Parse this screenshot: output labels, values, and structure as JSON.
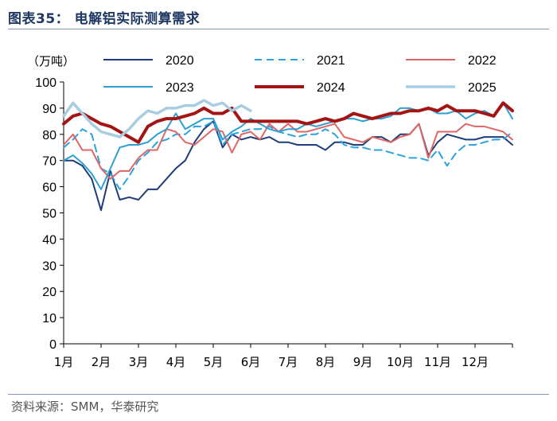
{
  "figure": {
    "title": "图表35：  电解铝实际测算需求",
    "source": "资料来源：SMM，华泰研究"
  },
  "chart_data": {
    "type": "line",
    "title": "电解铝实际测算需求",
    "unit_label": "（万吨）",
    "xlabel": "",
    "ylabel": "万吨",
    "ylim": [
      0,
      100
    ],
    "yticks": [
      0,
      10,
      20,
      30,
      40,
      50,
      60,
      70,
      80,
      90,
      100
    ],
    "xlim": [
      0,
      48
    ],
    "xticks": [
      {
        "label": "1月",
        "x": 0
      },
      {
        "label": "2月",
        "x": 4
      },
      {
        "label": "3月",
        "x": 8
      },
      {
        "label": "4月",
        "x": 12
      },
      {
        "label": "5月",
        "x": 16
      },
      {
        "label": "6月",
        "x": 20
      },
      {
        "label": "7月",
        "x": 24
      },
      {
        "label": "8月",
        "x": 28
      },
      {
        "label": "9月",
        "x": 32
      },
      {
        "label": "10月",
        "x": 36
      },
      {
        "label": "11月",
        "x": 40
      },
      {
        "label": "12月",
        "x": 44
      }
    ],
    "legend_position": "top",
    "series": [
      {
        "name": "2020",
        "color": "#1f3d7a",
        "dash": "solid",
        "width": 2,
        "values": [
          70,
          70,
          68,
          63,
          51,
          66,
          55,
          56,
          55,
          59,
          59,
          63,
          67,
          70,
          77,
          82,
          85,
          75,
          80,
          78,
          79,
          78,
          79,
          77,
          77,
          76,
          76,
          76,
          74,
          77,
          77,
          76,
          76,
          79,
          79,
          77,
          80,
          80,
          84,
          72,
          77,
          80,
          79,
          78,
          78,
          79,
          79,
          79,
          76
        ]
      },
      {
        "name": "2021",
        "color": "#2aa3e0",
        "dash": "dashed",
        "width": 2,
        "values": [
          75,
          78,
          82,
          80,
          67,
          65,
          59,
          64,
          70,
          73,
          77,
          78,
          80,
          80,
          83,
          83,
          85,
          76,
          80,
          81,
          82,
          82,
          83,
          81,
          80,
          79,
          80,
          80,
          82,
          80,
          76,
          75,
          75,
          74,
          74,
          73,
          72,
          71,
          71,
          70,
          74,
          68,
          73,
          76,
          76,
          77,
          78,
          78,
          81
        ]
      },
      {
        "name": "2022",
        "color": "#e06666",
        "dash": "solid",
        "width": 2,
        "values": [
          76,
          80,
          74,
          74,
          67,
          63,
          66,
          66,
          71,
          74,
          74,
          82,
          81,
          77,
          76,
          79,
          82,
          81,
          73,
          80,
          81,
          78,
          84,
          81,
          84,
          81,
          81,
          82,
          83,
          84,
          79,
          78,
          77,
          79,
          78,
          77,
          79,
          80,
          84,
          71,
          81,
          81,
          81,
          84,
          83,
          83,
          82,
          81,
          78
        ]
      },
      {
        "name": "2023",
        "color": "#2e9fd4",
        "dash": "solid",
        "width": 2,
        "values": [
          70,
          72,
          69,
          65,
          59,
          67,
          75,
          76,
          76,
          77,
          80,
          82,
          88,
          82,
          84,
          86,
          86,
          78,
          81,
          83,
          86,
          84,
          82,
          81,
          82,
          82,
          84,
          83,
          84,
          85,
          86,
          86,
          85,
          86,
          86,
          87,
          90,
          90,
          89,
          90,
          88,
          88,
          89,
          86,
          88,
          89,
          87,
          92,
          86
        ]
      },
      {
        "name": "2024",
        "color": "#a31515",
        "dash": "solid",
        "width": 4,
        "values": [
          84,
          87,
          88,
          86,
          84,
          83,
          81,
          79,
          77,
          83,
          85,
          86,
          86,
          87,
          88,
          90,
          88,
          88,
          90,
          85,
          85,
          85,
          85,
          85,
          85,
          85,
          84,
          85,
          86,
          85,
          86,
          88,
          87,
          86,
          87,
          88,
          88,
          89,
          89,
          90,
          89,
          91,
          89,
          89,
          89,
          88,
          87,
          92,
          89
        ]
      },
      {
        "name": "2025",
        "color": "#a9cde0",
        "dash": "solid",
        "width": 3.5,
        "values": [
          87,
          92,
          88,
          84,
          81,
          80,
          79,
          82,
          86,
          89,
          88,
          90,
          90,
          91,
          91,
          93,
          91,
          92,
          89,
          91,
          89
        ]
      }
    ]
  }
}
